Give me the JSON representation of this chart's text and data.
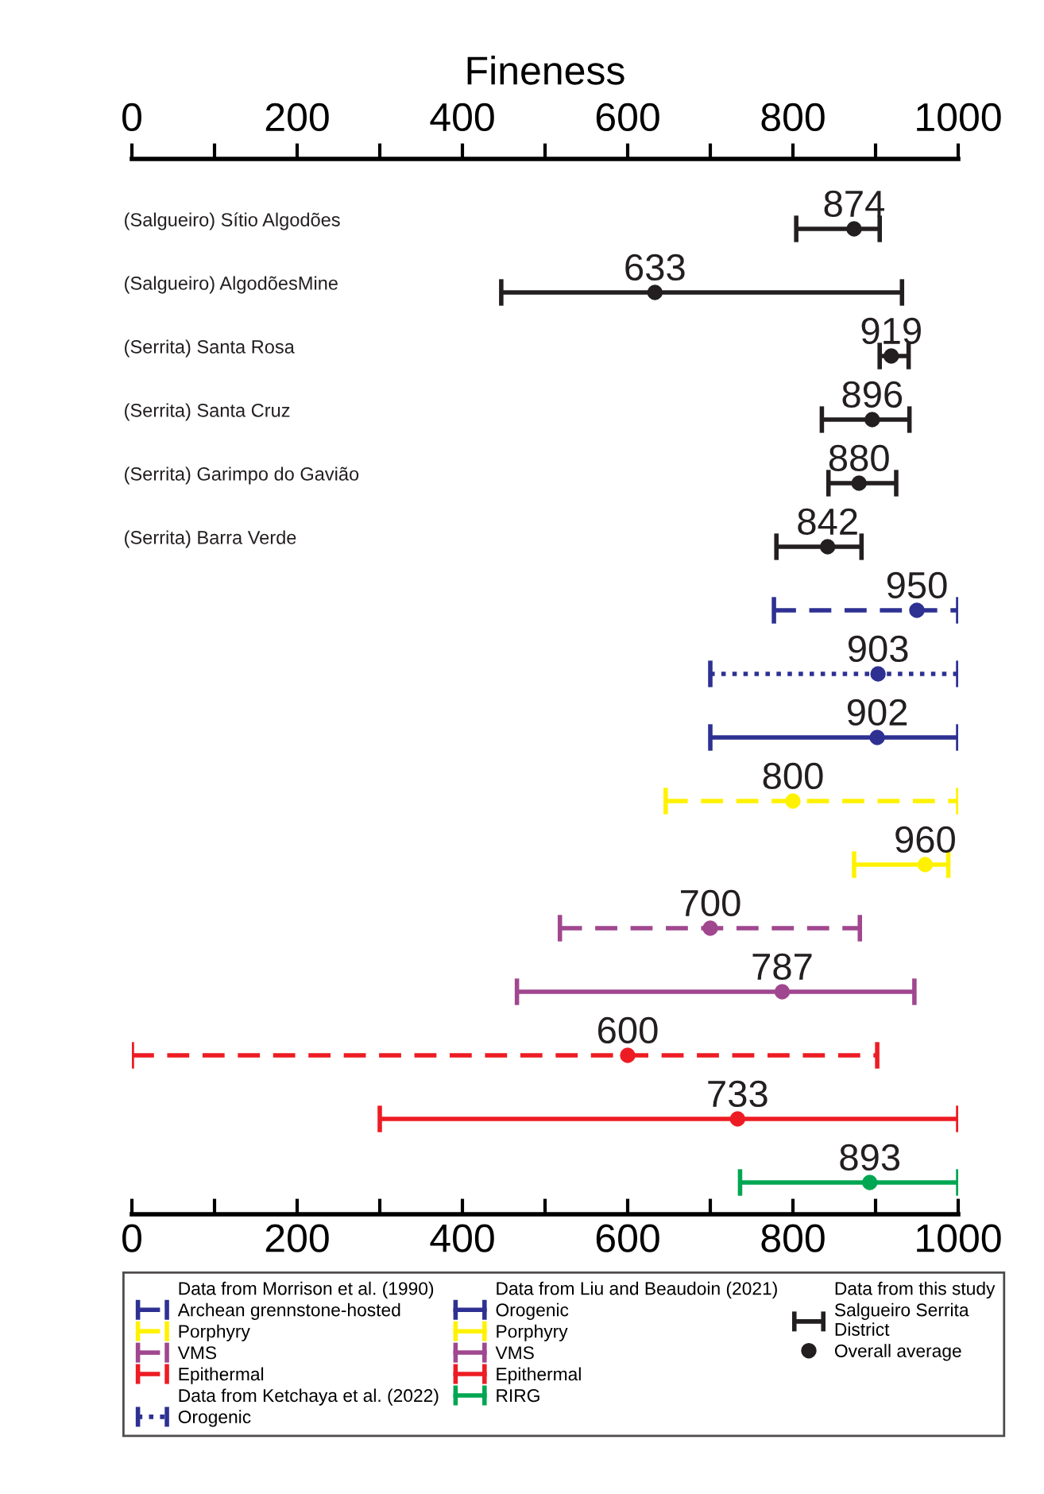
{
  "chart_data": {
    "type": "scatter",
    "orientation": "horizontal",
    "x2label": "Fineness",
    "categories": [
      "(Salgueiro) Sítio Algodões",
      "(Salgueiro) AlgodõesMine",
      "(Serrita) Santa Rosa",
      "(Serrita) Santa Cruz",
      "(Serrita) Garimpo do Gavião",
      "(Serrita) Barra Verde",
      null,
      null,
      null,
      null,
      null,
      null,
      null,
      null,
      null,
      null
    ],
    "xlim": [
      0,
      1000
    ],
    "xticks": [
      0,
      {
        "value": 100,
        "label": null
      },
      200,
      {
        "value": 300,
        "label": null
      },
      400,
      {
        "value": 500,
        "label": null
      },
      600,
      {
        "value": 700,
        "label": null
      },
      800,
      {
        "value": 900,
        "label": null
      },
      1000
    ],
    "x2lim": [
      0,
      1000
    ],
    "x2ticks": [
      0,
      {
        "value": 100,
        "label": null
      },
      200,
      {
        "value": 300,
        "label": null
      },
      400,
      {
        "value": 500,
        "label": null
      },
      600,
      {
        "value": 700,
        "label": null
      },
      800,
      {
        "value": 900,
        "label": null
      },
      1000
    ],
    "marker": "circle",
    "data_labels": true,
    "grid": false,
    "legend": "bottom",
    "annotations": [
      "Data from Morrison et al. (1990)",
      "Data from Ketchaya et al. (2022)",
      "Data from Liu and Beaudoin (2021)",
      "Data from this study",
      "Overall average"
    ],
    "series": [
      {
        "name": "Archean grennstone-hosted",
        "color": "#2e3192",
        "line_style": "dashed",
        "values": [
          null,
          null,
          null,
          null,
          null,
          null,
          950,
          null,
          null,
          null,
          null,
          null,
          null,
          null,
          null,
          null
        ],
        "errors": [
          null,
          null,
          null,
          null,
          null,
          null,
          [
            777,
            1000
          ],
          null,
          null,
          null,
          null,
          null,
          null,
          null,
          null,
          null
        ]
      },
      {
        "name": "Porphyry",
        "color": "#fff200",
        "line_style": "dashed",
        "values": [
          null,
          null,
          null,
          null,
          null,
          null,
          null,
          null,
          null,
          800,
          null,
          null,
          null,
          null,
          null,
          null
        ],
        "errors": [
          null,
          null,
          null,
          null,
          null,
          null,
          null,
          null,
          null,
          [
            646,
            1000
          ],
          null,
          null,
          null,
          null,
          null,
          null
        ]
      },
      {
        "name": "VMS",
        "color": "#a0478f",
        "line_style": "dashed",
        "values": [
          null,
          null,
          null,
          null,
          null,
          null,
          null,
          null,
          null,
          null,
          null,
          700,
          null,
          null,
          null,
          null
        ],
        "errors": [
          null,
          null,
          null,
          null,
          null,
          null,
          null,
          null,
          null,
          null,
          null,
          [
            518,
            881
          ],
          null,
          null,
          null,
          null
        ]
      },
      {
        "name": "Epithermal",
        "color": "#ed1c24",
        "line_style": "dashed",
        "values": [
          null,
          null,
          null,
          null,
          null,
          null,
          null,
          null,
          null,
          null,
          null,
          null,
          null,
          600,
          null,
          null
        ],
        "errors": [
          null,
          null,
          null,
          null,
          null,
          null,
          null,
          null,
          null,
          null,
          null,
          null,
          null,
          [
            0,
            902
          ],
          null,
          null
        ]
      },
      {
        "name": "Orogenic",
        "color": "#2e3192",
        "line_style": "dotted",
        "values": [
          null,
          null,
          null,
          null,
          null,
          null,
          null,
          903,
          null,
          null,
          null,
          null,
          null,
          null,
          null,
          null
        ],
        "errors": [
          null,
          null,
          null,
          null,
          null,
          null,
          null,
          [
            700,
            1000
          ],
          null,
          null,
          null,
          null,
          null,
          null,
          null,
          null
        ]
      },
      {
        "name": "Orogenic",
        "color": "#2e3192",
        "line_style": "solid",
        "values": [
          null,
          null,
          null,
          null,
          null,
          null,
          null,
          null,
          902,
          null,
          null,
          null,
          null,
          null,
          null,
          null
        ],
        "errors": [
          null,
          null,
          null,
          null,
          null,
          null,
          null,
          null,
          [
            700,
            1000
          ],
          null,
          null,
          null,
          null,
          null,
          null,
          null
        ]
      },
      {
        "name": "Porphyry",
        "color": "#fff200",
        "line_style": "solid",
        "values": [
          null,
          null,
          null,
          null,
          null,
          null,
          null,
          null,
          null,
          null,
          960,
          null,
          null,
          null,
          null,
          null
        ],
        "errors": [
          null,
          null,
          null,
          null,
          null,
          null,
          null,
          null,
          null,
          null,
          [
            874,
            988
          ],
          null,
          null,
          null,
          null,
          null
        ]
      },
      {
        "name": "VMS",
        "color": "#a0478f",
        "line_style": "solid",
        "values": [
          null,
          null,
          null,
          null,
          null,
          null,
          null,
          null,
          null,
          null,
          null,
          null,
          787,
          null,
          null,
          null
        ],
        "errors": [
          null,
          null,
          null,
          null,
          null,
          null,
          null,
          null,
          null,
          null,
          null,
          null,
          [
            466,
            947
          ],
          null,
          null,
          null
        ]
      },
      {
        "name": "Epithermal",
        "color": "#ed1c24",
        "line_style": "solid",
        "values": [
          null,
          null,
          null,
          null,
          null,
          null,
          null,
          null,
          null,
          null,
          null,
          null,
          null,
          null,
          733,
          null
        ],
        "errors": [
          null,
          null,
          null,
          null,
          null,
          null,
          null,
          null,
          null,
          null,
          null,
          null,
          null,
          null,
          [
            300,
            1000
          ],
          null
        ]
      },
      {
        "name": "RIRG",
        "color": "#00a651",
        "line_style": "solid",
        "values": [
          null,
          null,
          null,
          null,
          null,
          null,
          null,
          null,
          null,
          null,
          null,
          null,
          null,
          null,
          null,
          893
        ],
        "errors": [
          null,
          null,
          null,
          null,
          null,
          null,
          null,
          null,
          null,
          null,
          null,
          null,
          null,
          null,
          null,
          [
            736,
            1000
          ]
        ]
      },
      {
        "name": "Salgueiro Serrita\nDistrict",
        "color": "#231f20",
        "line_style": "solid",
        "values": [
          874,
          633,
          919,
          896,
          880,
          842,
          null,
          null,
          null,
          null,
          null,
          null,
          null,
          null,
          null,
          null
        ],
        "errors": [
          [
            804,
            905
          ],
          [
            447,
            932
          ],
          [
            905,
            940
          ],
          [
            835,
            941
          ],
          [
            843,
            925
          ],
          [
            780,
            883
          ],
          null,
          null,
          null,
          null,
          null,
          null,
          null,
          null,
          null,
          null
        ]
      }
    ]
  }
}
